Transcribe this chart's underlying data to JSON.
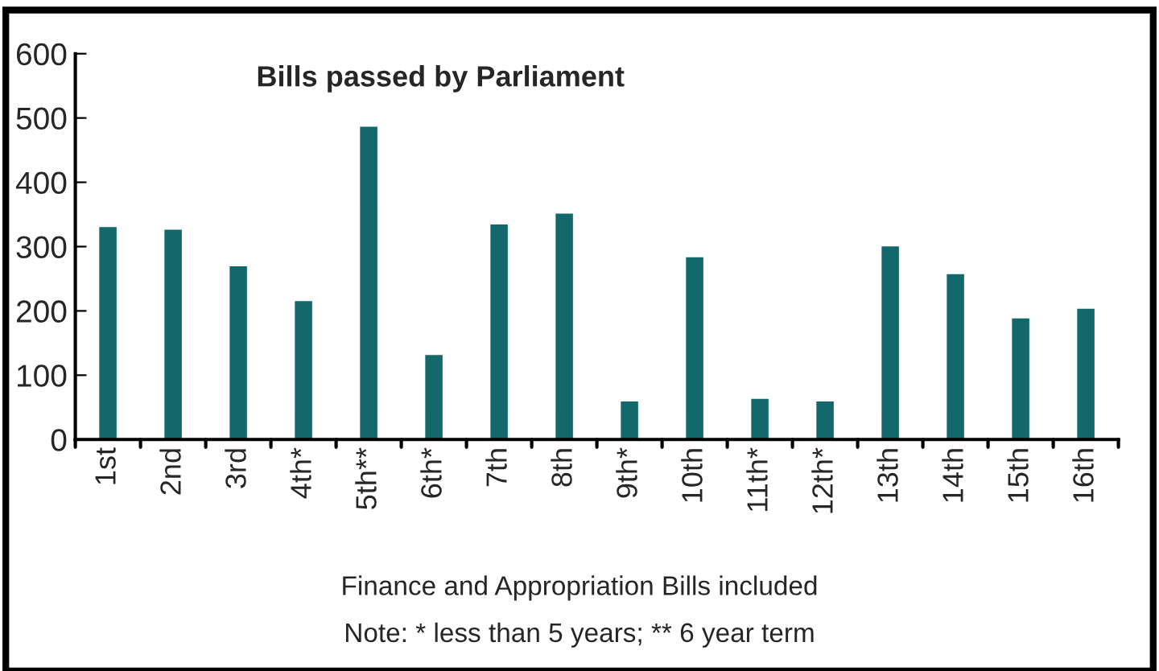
{
  "chart_data": {
    "type": "bar",
    "title": "Bills passed by Parliament",
    "categories": [
      "1st",
      "2nd",
      "3rd",
      "4th*",
      "5th**",
      "6th*",
      "7th",
      "8th",
      "9th*",
      "10th",
      "11th*",
      "12th*",
      "13th",
      "14th",
      "15th",
      "16th"
    ],
    "values": [
      332,
      328,
      271,
      217,
      488,
      133,
      336,
      353,
      61,
      285,
      65,
      61,
      302,
      259,
      190,
      205
    ],
    "color": "#13686b",
    "ylim": [
      0,
      600
    ],
    "yticks": [
      0,
      100,
      200,
      300,
      400,
      500,
      600
    ],
    "grid": false,
    "annotations": [
      "Finance and Appropriation Bills included",
      "Note: * less than 5 years; ** 6 year term"
    ]
  }
}
